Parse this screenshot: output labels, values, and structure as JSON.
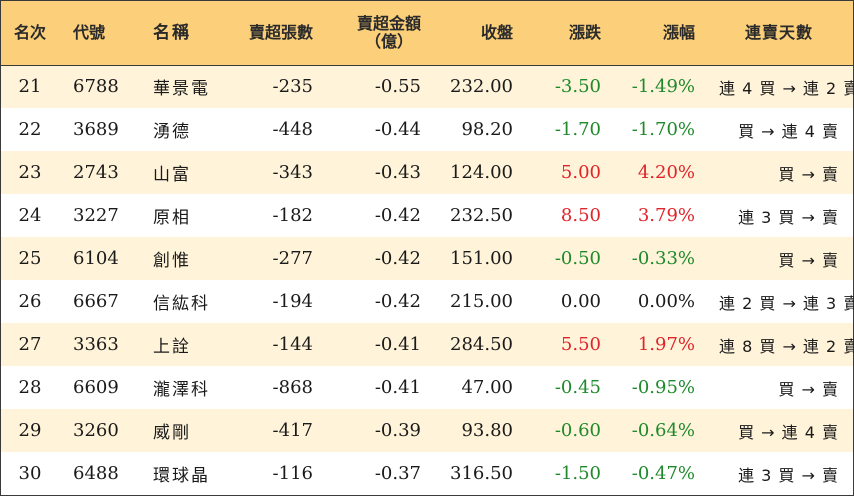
{
  "headers": {
    "rank": "名次",
    "code": "代號",
    "name": "名稱",
    "net_sell_shares": "賣超張數",
    "net_sell_amount_line1": "賣超金額",
    "net_sell_amount_line2": "（億）",
    "close": "收盤",
    "change": "漲跌",
    "change_pct": "漲幅",
    "streak": "連賣天數"
  },
  "colors": {
    "header_bg": "#fcd07a",
    "stripe_bg": "#fff3d9",
    "up": "#e0242a",
    "down": "#1f8a2c"
  },
  "rows": [
    {
      "rank": "21",
      "code": "6788",
      "name": "華景電",
      "shares": "-235",
      "amount": "-0.55",
      "close": "232.00",
      "change": "-3.50",
      "pct": "-1.49%",
      "dir": "down",
      "streak": "連 4 買 → 連 2 賣"
    },
    {
      "rank": "22",
      "code": "3689",
      "name": "湧德",
      "shares": "-448",
      "amount": "-0.44",
      "close": "98.20",
      "change": "-1.70",
      "pct": "-1.70%",
      "dir": "down",
      "streak": "買 → 連 4 賣"
    },
    {
      "rank": "23",
      "code": "2743",
      "name": "山富",
      "shares": "-343",
      "amount": "-0.43",
      "close": "124.00",
      "change": "5.00",
      "pct": "4.20%",
      "dir": "up",
      "streak": "買 → 賣"
    },
    {
      "rank": "24",
      "code": "3227",
      "name": "原相",
      "shares": "-182",
      "amount": "-0.42",
      "close": "232.50",
      "change": "8.50",
      "pct": "3.79%",
      "dir": "up",
      "streak": "連 3 買 → 賣"
    },
    {
      "rank": "25",
      "code": "6104",
      "name": "創惟",
      "shares": "-277",
      "amount": "-0.42",
      "close": "151.00",
      "change": "-0.50",
      "pct": "-0.33%",
      "dir": "down",
      "streak": "買 → 賣"
    },
    {
      "rank": "26",
      "code": "6667",
      "name": "信紘科",
      "shares": "-194",
      "amount": "-0.42",
      "close": "215.00",
      "change": "0.00",
      "pct": "0.00%",
      "dir": "flat",
      "streak": "連 2 買 → 連 3 賣"
    },
    {
      "rank": "27",
      "code": "3363",
      "name": "上詮",
      "shares": "-144",
      "amount": "-0.41",
      "close": "284.50",
      "change": "5.50",
      "pct": "1.97%",
      "dir": "up",
      "streak": "連 8 買 → 連 2 賣"
    },
    {
      "rank": "28",
      "code": "6609",
      "name": "瀧澤科",
      "shares": "-868",
      "amount": "-0.41",
      "close": "47.00",
      "change": "-0.45",
      "pct": "-0.95%",
      "dir": "down",
      "streak": "買 → 賣"
    },
    {
      "rank": "29",
      "code": "3260",
      "name": "威剛",
      "shares": "-417",
      "amount": "-0.39",
      "close": "93.80",
      "change": "-0.60",
      "pct": "-0.64%",
      "dir": "down",
      "streak": "買 → 連 4 賣"
    },
    {
      "rank": "30",
      "code": "6488",
      "name": "環球晶",
      "shares": "-116",
      "amount": "-0.37",
      "close": "316.50",
      "change": "-1.50",
      "pct": "-0.47%",
      "dir": "down",
      "streak": "連 3 買 → 賣"
    }
  ]
}
